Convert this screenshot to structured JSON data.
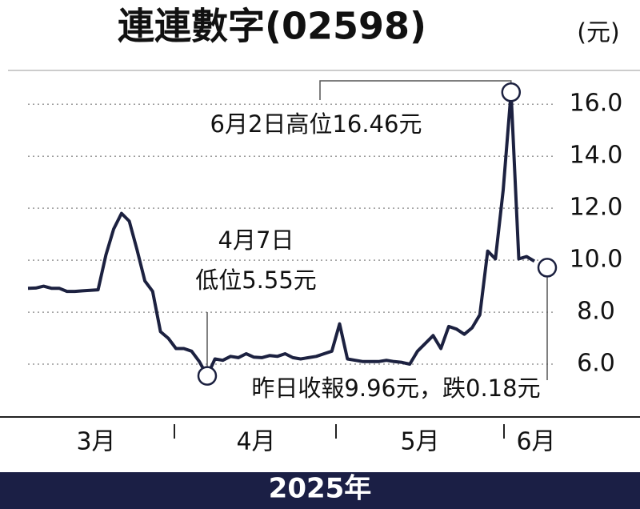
{
  "chart_data": {
    "type": "line",
    "title": "連連數字(02598)",
    "unit": "(元)",
    "color": "#1c2140",
    "values": [
      8.92,
      8.93,
      9.0,
      8.92,
      8.92,
      8.8,
      8.8,
      8.82,
      8.84,
      8.86,
      10.2,
      11.2,
      11.8,
      11.5,
      10.4,
      9.2,
      8.8,
      7.25,
      7.0,
      6.6,
      6.6,
      6.5,
      6.1,
      5.55,
      6.2,
      6.15,
      6.3,
      6.25,
      6.4,
      6.27,
      6.25,
      6.33,
      6.3,
      6.4,
      6.25,
      6.2,
      6.25,
      6.3,
      6.4,
      6.5,
      7.55,
      6.2,
      6.15,
      6.1,
      6.1,
      6.1,
      6.15,
      6.1,
      6.07,
      6.0,
      6.5,
      6.8,
      7.1,
      6.6,
      7.45,
      7.35,
      7.15,
      7.4,
      7.9,
      10.35,
      10.05,
      12.7,
      16.46,
      10.05,
      10.14,
      9.96
    ],
    "months": [
      "3月",
      "4月",
      "5月",
      "6月"
    ],
    "ylim": [
      4,
      17.3
    ],
    "yticks": [
      {
        "value": 6,
        "label": "6.0"
      },
      {
        "value": 8,
        "label": "8.0"
      },
      {
        "value": 10,
        "label": "10.0"
      },
      {
        "value": 12,
        "label": "12.0"
      },
      {
        "value": 14,
        "label": "14.0"
      },
      {
        "value": 16,
        "label": "16.0"
      }
    ],
    "grid": true,
    "annotations": [
      "6月2日高位16.46元",
      "4月7日",
      "低位5.55元",
      "昨日收報9.96元，跌0.18元"
    ],
    "year_label": "2025年"
  }
}
